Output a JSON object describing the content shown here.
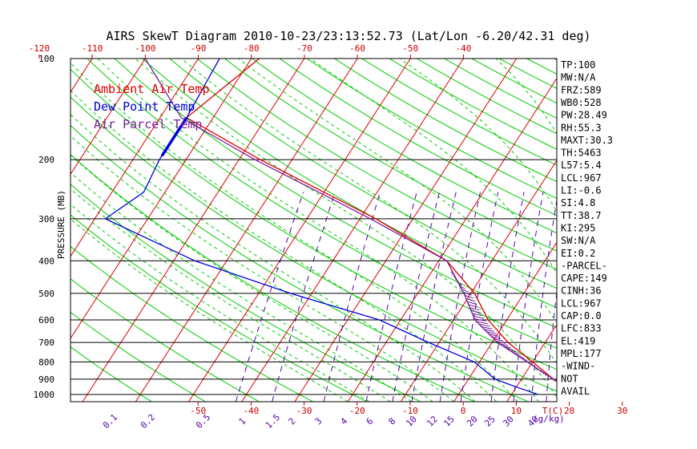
{
  "title": "AIRS SkewT Diagram 2010-10-23/23:13:52.73 (Lat/Lon -6.20/42.31 deg)",
  "chart_data": {
    "type": "skewt",
    "ylabel": "PRESSURE (MB)",
    "top_temperature_ticks": [
      "-120",
      "-110",
      "-100",
      "-90",
      "-80",
      "-70",
      "-60",
      "-50",
      "-40"
    ],
    "pressure_ticks": [
      100,
      200,
      300,
      400,
      500,
      600,
      700,
      800,
      900,
      1000
    ],
    "bottom_temperature_ticks": [
      "-50",
      "-40",
      "-30",
      "-20",
      "-10",
      "0",
      "10",
      "20",
      "30"
    ],
    "bottom_unit_label": "T(C)",
    "mixing_ratio_labels": [
      "0.1",
      "0.2",
      "0.5",
      "1",
      "1.5",
      "2",
      "3",
      "4",
      "6",
      "8",
      "10",
      "12",
      "15",
      "20",
      "25",
      "30",
      "40"
    ],
    "mixing_ratio_unit": "(g/kg)",
    "legend": [
      {
        "label": "Ambient Air Temp",
        "color": "#dd0000"
      },
      {
        "label": "Dew Point Temp",
        "color": "#0000dd"
      },
      {
        "label": "Air Parcel Temp",
        "color": "#7a1f9a"
      }
    ],
    "series": [
      {
        "name": "Ambient Air Temp",
        "points": [
          [
            100,
            -78.5
          ],
          [
            150,
            -85
          ],
          [
            200,
            -66
          ],
          [
            250,
            -50
          ],
          [
            300,
            -37
          ],
          [
            400,
            -18.5
          ],
          [
            500,
            -9.3
          ],
          [
            600,
            -3.5
          ],
          [
            700,
            3
          ],
          [
            800,
            10
          ],
          [
            900,
            16
          ],
          [
            950,
            21
          ],
          [
            1000,
            25
          ]
        ]
      },
      {
        "name": "Dew Point Temp",
        "points": [
          [
            100,
            -86
          ],
          [
            150,
            -85
          ],
          [
            200,
            -85
          ],
          [
            250,
            -84
          ],
          [
            300,
            -88
          ],
          [
            400,
            -66
          ],
          [
            500,
            -44
          ],
          [
            600,
            -24
          ],
          [
            700,
            -12
          ],
          [
            800,
            -1
          ],
          [
            900,
            5
          ],
          [
            950,
            10
          ],
          [
            1000,
            15
          ]
        ]
      },
      {
        "name": "Air Parcel Temp",
        "points": [
          [
            100,
            -100
          ],
          [
            150,
            -86
          ],
          [
            200,
            -67
          ],
          [
            250,
            -51
          ],
          [
            300,
            -38
          ],
          [
            400,
            -18.5
          ],
          [
            500,
            -11.3
          ],
          [
            600,
            -6
          ],
          [
            700,
            1
          ],
          [
            800,
            9
          ],
          [
            900,
            16
          ],
          [
            950,
            19
          ],
          [
            1000,
            25
          ]
        ]
      }
    ],
    "indices": [
      "TP:100",
      "MW:N/A",
      "FRZ:589",
      "WB0:528",
      "PW:28.49",
      "RH:55.3",
      "MAXT:30.3",
      "TH:5463",
      "L57:5.4",
      "LCL:967",
      "LI:-0.6",
      "SI:4.8",
      "TT:38.7",
      "KI:295",
      "SW:N/A",
      "EI:0.2",
      "-PARCEL-",
      "CAPE:149",
      "CINH:36",
      "LCL:967",
      "CAP:0.0",
      "LFC:833",
      "EL:419",
      "MPL:177",
      "-WIND-",
      "NOT",
      "AVAIL"
    ],
    "colors": {
      "dry_adiabat": "#00cc00",
      "moist_adiabat": "#00cc00",
      "isotherm": "#dd0000",
      "mixing_ratio": "#5500aa",
      "isobar": "#000000",
      "axis_labels": "#cc0000"
    }
  }
}
